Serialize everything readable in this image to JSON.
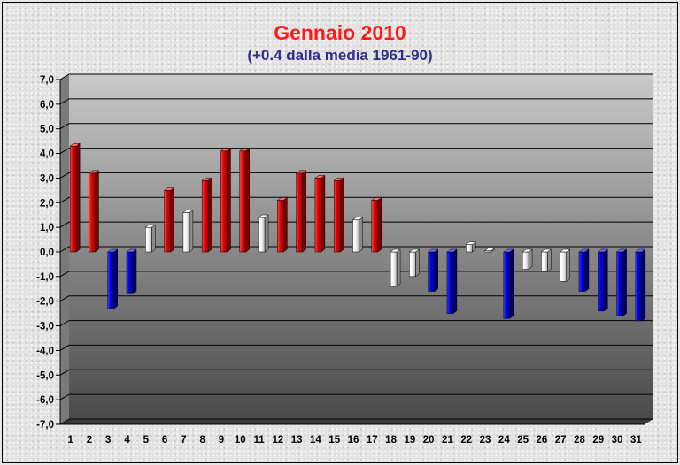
{
  "title": "Gennaio 2010",
  "subtitle": "(+0.4 dalla media 1961-90)",
  "colors": {
    "positive": "#ee0000",
    "negative": "#0000ee",
    "neutral": "#ffffff"
  },
  "chart_data": {
    "type": "bar",
    "title": "Gennaio 2010",
    "subtitle": "(+0.4 dalla media 1961-90)",
    "xlabel": "",
    "ylabel": "",
    "ylim": [
      -7,
      7
    ],
    "grid": true,
    "legend": "none",
    "y_ticks": [
      "7,0",
      "6,0",
      "5,0",
      "4,0",
      "3,0",
      "2,0",
      "1,0",
      "0,0",
      "-1,0",
      "-2,0",
      "-3,0",
      "-4,0",
      "-5,0",
      "-6,0",
      "-7,0"
    ],
    "categories": [
      "1",
      "2",
      "3",
      "4",
      "5",
      "6",
      "7",
      "8",
      "9",
      "10",
      "11",
      "12",
      "13",
      "14",
      "15",
      "16",
      "17",
      "18",
      "19",
      "20",
      "21",
      "22",
      "23",
      "24",
      "25",
      "26",
      "27",
      "28",
      "29",
      "30",
      "31"
    ],
    "values": [
      4.3,
      3.2,
      -2.3,
      -1.7,
      1.0,
      2.5,
      1.6,
      2.9,
      4.1,
      4.1,
      1.4,
      2.1,
      3.2,
      3.0,
      2.9,
      1.3,
      2.1,
      -1.4,
      -1.0,
      -1.6,
      -2.5,
      0.3,
      0.05,
      -2.7,
      -0.7,
      -0.8,
      -1.2,
      -1.6,
      -2.4,
      -2.6,
      -2.8
    ],
    "bar_colors": [
      "red",
      "red",
      "blue",
      "blue",
      "white",
      "red",
      "white",
      "red",
      "red",
      "red",
      "white",
      "red",
      "red",
      "red",
      "red",
      "white",
      "red",
      "white",
      "white",
      "blue",
      "blue",
      "white",
      "white",
      "blue",
      "white",
      "white",
      "white",
      "blue",
      "blue",
      "blue",
      "blue"
    ]
  }
}
